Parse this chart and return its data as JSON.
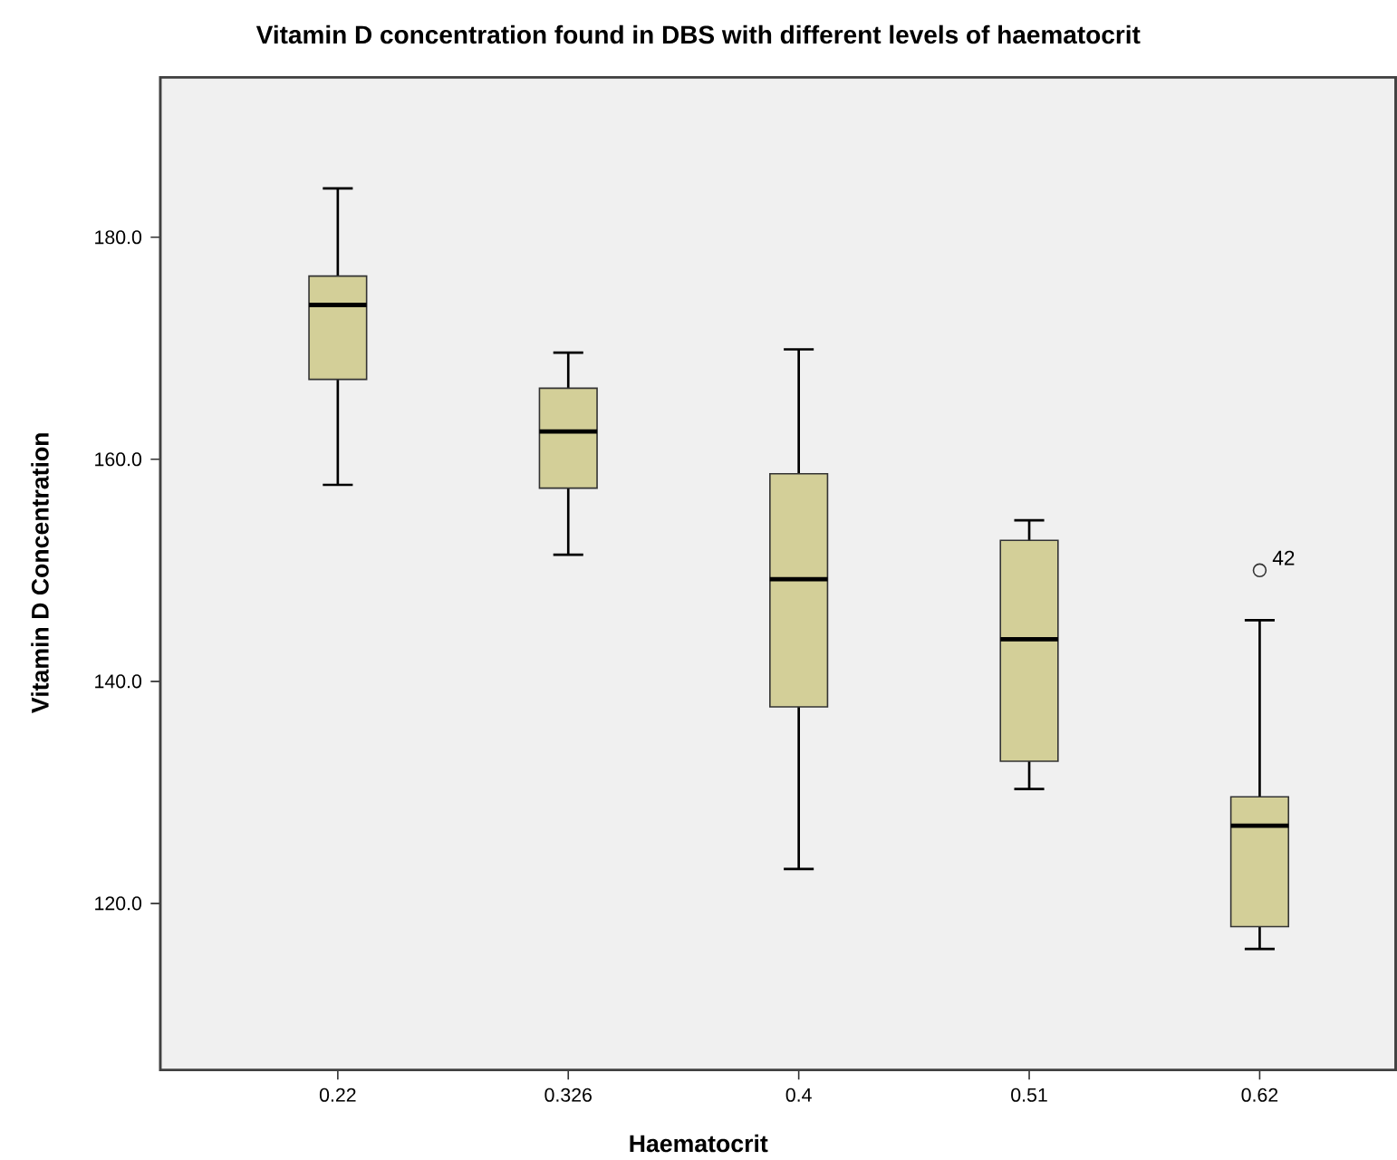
{
  "chart_data": {
    "type": "box",
    "title": "Vitamin D concentration found in DBS with different levels of haematocrit",
    "xlabel": "Haematocrit",
    "ylabel": "Vitamin D Concentration",
    "categories": [
      "0.22",
      "0.326",
      "0.4",
      "0.51",
      "0.62"
    ],
    "color": "#d3cf98",
    "boxes": [
      {
        "low": 157.7,
        "q1": 167.2,
        "median": 173.9,
        "q3": 176.5,
        "high": 184.4
      },
      {
        "low": 151.4,
        "q1": 157.4,
        "median": 162.5,
        "q3": 166.4,
        "high": 169.6
      },
      {
        "low": 123.1,
        "q1": 137.7,
        "median": 149.2,
        "q3": 158.7,
        "high": 169.9
      },
      {
        "low": 130.3,
        "q1": 132.8,
        "median": 143.8,
        "q3": 152.7,
        "high": 154.5
      },
      {
        "low": 115.9,
        "q1": 117.9,
        "median": 127.0,
        "q3": 129.6,
        "high": 145.5,
        "outliers": [
          150.0
        ]
      }
    ],
    "ylim": [
      105,
      194.4
    ],
    "yticks": [
      {
        "value": 120,
        "label": "120.0"
      },
      {
        "value": 140,
        "label": "140.0"
      },
      {
        "value": 160,
        "label": "160.0"
      },
      {
        "value": 180,
        "label": "180.0"
      }
    ],
    "annotations": [
      "42"
    ]
  }
}
